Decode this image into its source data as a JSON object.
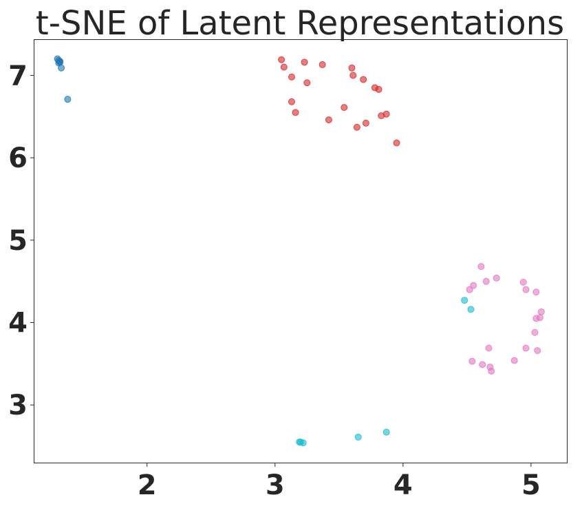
{
  "chart_data": {
    "type": "scatter",
    "title": "t-SNE of Latent Representations",
    "xlabel": "",
    "ylabel": "",
    "xlim": [
      1.12,
      5.28
    ],
    "ylim": [
      2.3,
      7.43
    ],
    "xticks": [
      2,
      3,
      4,
      5
    ],
    "yticks": [
      3,
      4,
      5,
      6,
      7
    ],
    "grid": false,
    "series": [
      {
        "color": "#1f77b4",
        "points": [
          [
            1.3,
            7.2
          ],
          [
            1.31,
            7.18
          ],
          [
            1.32,
            7.16
          ],
          [
            1.31,
            7.15
          ],
          [
            1.32,
            7.17
          ],
          [
            1.33,
            7.09
          ],
          [
            1.38,
            6.71
          ]
        ]
      },
      {
        "color": "#d62728",
        "points": [
          [
            3.05,
            7.19
          ],
          [
            3.07,
            7.1
          ],
          [
            3.23,
            7.16
          ],
          [
            3.37,
            7.13
          ],
          [
            3.6,
            7.09
          ],
          [
            3.61,
            7.0
          ],
          [
            3.13,
            6.98
          ],
          [
            3.25,
            6.91
          ],
          [
            3.69,
            6.95
          ],
          [
            3.78,
            6.85
          ],
          [
            3.81,
            6.83
          ],
          [
            3.13,
            6.68
          ],
          [
            3.16,
            6.55
          ],
          [
            3.54,
            6.61
          ],
          [
            3.87,
            6.53
          ],
          [
            3.83,
            6.51
          ],
          [
            3.42,
            6.46
          ],
          [
            3.71,
            6.42
          ],
          [
            3.64,
            6.37
          ],
          [
            3.95,
            6.18
          ]
        ]
      },
      {
        "color": "#e377c2",
        "points": [
          [
            4.61,
            4.68
          ],
          [
            4.55,
            4.45
          ],
          [
            4.52,
            4.4
          ],
          [
            4.65,
            4.5
          ],
          [
            4.73,
            4.54
          ],
          [
            4.94,
            4.49
          ],
          [
            4.96,
            4.4
          ],
          [
            5.04,
            4.37
          ],
          [
            5.08,
            4.13
          ],
          [
            5.07,
            4.06
          ],
          [
            5.04,
            4.05
          ],
          [
            5.03,
            3.88
          ],
          [
            4.67,
            3.69
          ],
          [
            4.96,
            3.69
          ],
          [
            5.05,
            3.66
          ],
          [
            4.54,
            3.53
          ],
          [
            4.62,
            3.49
          ],
          [
            4.87,
            3.54
          ],
          [
            4.68,
            3.46
          ],
          [
            4.69,
            3.41
          ]
        ]
      },
      {
        "color": "#17becf",
        "points": [
          [
            4.48,
            4.27
          ],
          [
            4.53,
            4.16
          ],
          [
            3.19,
            2.55
          ],
          [
            3.2,
            2.55
          ],
          [
            3.22,
            2.54
          ],
          [
            3.65,
            2.61
          ],
          [
            3.87,
            2.67
          ]
        ]
      }
    ]
  }
}
